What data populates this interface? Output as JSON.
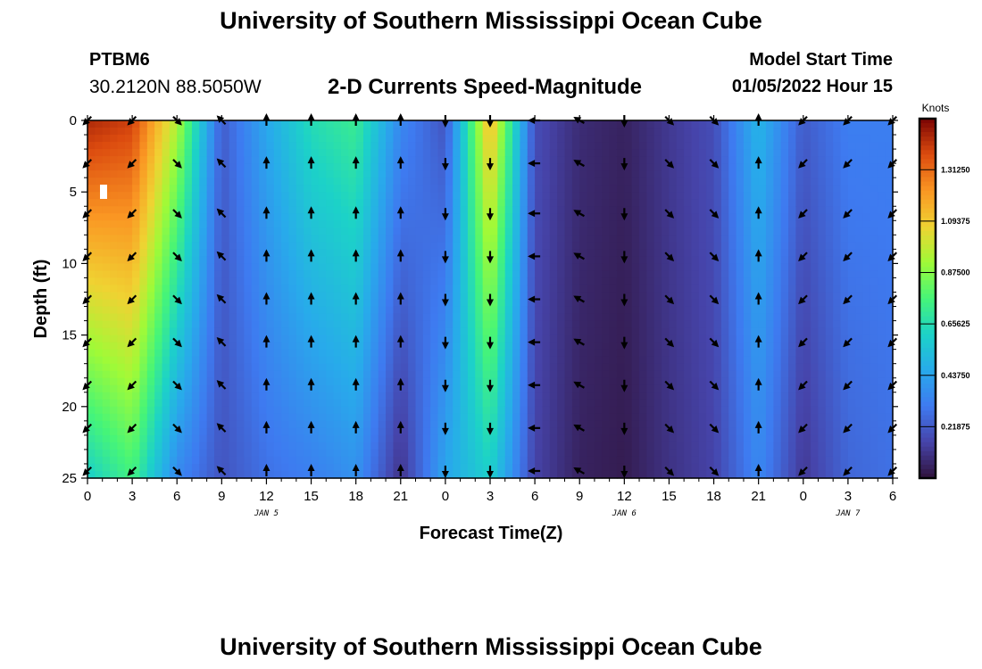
{
  "header": {
    "title": "University of Southern Mississippi Ocean Cube",
    "station": "PTBM6",
    "coords": "30.2120N  88.5050W",
    "subtitle": "2-D Currents Speed-Magnitude",
    "model_start_label": "Model Start Time",
    "model_start_value": "01/05/2022 Hour 15"
  },
  "footer": {
    "title": "University of Southern Mississippi Ocean Cube"
  },
  "chart_data": {
    "type": "heatmap",
    "title": "2-D Currents Speed-Magnitude",
    "xlabel": "Forecast Time(Z)",
    "ylabel": "Depth (ft)",
    "x_hours": [
      0,
      3,
      6,
      9,
      12,
      15,
      18,
      21,
      24,
      27,
      30,
      33,
      36,
      39,
      42,
      45,
      48,
      51,
      54
    ],
    "x_tick_labels": [
      "0",
      "3",
      "6",
      "9",
      "12",
      "15",
      "18",
      "21",
      "0",
      "3",
      "6",
      "9",
      "12",
      "15",
      "18",
      "21",
      "0",
      "3",
      "6"
    ],
    "date_labels": [
      {
        "label": "JAN 5",
        "hour": 12
      },
      {
        "label": "JAN 6",
        "hour": 36
      },
      {
        "label": "JAN 7",
        "hour": 51
      }
    ],
    "y_ticks": [
      0,
      5,
      10,
      15,
      20,
      25
    ],
    "ylim": [
      0,
      25
    ],
    "y_inverted": true,
    "colorbar": {
      "label": "Knots",
      "ticks": [
        "0.21875",
        "0.43750",
        "0.65625",
        "0.87500",
        "1.09375",
        "1.31250"
      ],
      "range": [
        0,
        1.53
      ]
    },
    "speed_profile_surface": [
      1.45,
      1.4,
      0.95,
      0.22,
      0.45,
      0.65,
      0.72,
      0.35,
      0.2,
      1.15,
      0.18,
      0.08,
      0.05,
      0.12,
      0.18,
      0.5,
      0.22,
      0.32,
      0.32
    ],
    "speed_profile_bottom": [
      0.6,
      0.75,
      0.35,
      0.2,
      0.28,
      0.32,
      0.38,
      0.1,
      0.45,
      0.6,
      0.15,
      0.05,
      0.03,
      0.1,
      0.15,
      0.35,
      0.12,
      0.25,
      0.28
    ],
    "vector_depths": [
      0,
      3,
      6.5,
      9.5,
      12.5,
      15.5,
      18.5,
      21.5,
      24.5
    ],
    "vector_directions_deg_by_hour": [
      225,
      225,
      135,
      315,
      0,
      0,
      0,
      0,
      180,
      180,
      270,
      300,
      180,
      135,
      135,
      0,
      225,
      225,
      225
    ]
  }
}
